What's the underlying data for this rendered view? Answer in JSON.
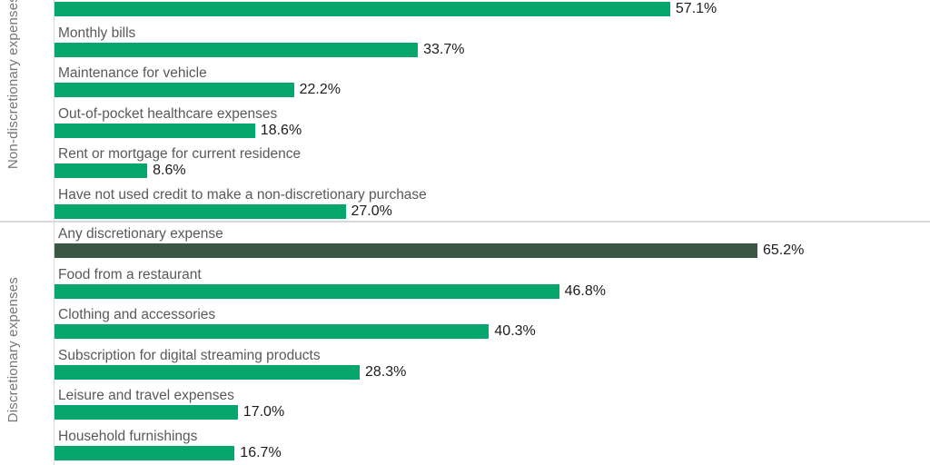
{
  "chart": {
    "bar_color": "#06A66D",
    "highlight_bar_color": "#3A5742",
    "category_label_color": "#595959",
    "value_label_color": "#1C1C1C",
    "axis_line_color": "#D9D9D9",
    "group_label_color": "#767676",
    "background_color": "#FFFFFF"
  },
  "chart_data": {
    "type": "bar",
    "orientation": "horizontal",
    "value_unit": "%",
    "xlim": [
      0,
      81.2
    ],
    "grid": false,
    "legend": false,
    "title": "",
    "groups": [
      {
        "label": "Non-discretionary expenses",
        "items": [
          {
            "label": "",
            "value": 57.1,
            "value_label": "57.1%",
            "emphasis": false
          },
          {
            "label": "Monthly bills",
            "value": 33.7,
            "value_label": "33.7%",
            "emphasis": false
          },
          {
            "label": "Maintenance for vehicle",
            "value": 22.2,
            "value_label": "22.2%",
            "emphasis": false
          },
          {
            "label": "Out-of-pocket healthcare expenses",
            "value": 18.6,
            "value_label": "18.6%",
            "emphasis": false
          },
          {
            "label": "Rent or mortgage for current residence",
            "value": 8.6,
            "value_label": "8.6%",
            "emphasis": false
          },
          {
            "label": "Have not used credit to make a non-discretionary purchase",
            "value": 27.0,
            "value_label": "27.0%",
            "emphasis": false
          }
        ]
      },
      {
        "label": "Discretionary expenses",
        "items": [
          {
            "label": "Any discretionary expense",
            "value": 65.2,
            "value_label": "65.2%",
            "emphasis": true
          },
          {
            "label": "Food from a restaurant",
            "value": 46.8,
            "value_label": "46.8%",
            "emphasis": false
          },
          {
            "label": "Clothing and accessories",
            "value": 40.3,
            "value_label": "40.3%",
            "emphasis": false
          },
          {
            "label": "Subscription for digital streaming products",
            "value": 28.3,
            "value_label": "28.3%",
            "emphasis": false
          },
          {
            "label": "Leisure and travel expenses",
            "value": 17.0,
            "value_label": "17.0%",
            "emphasis": false
          },
          {
            "label": "Household furnishings",
            "value": 16.7,
            "value_label": "16.7%",
            "emphasis": false
          }
        ]
      }
    ]
  }
}
